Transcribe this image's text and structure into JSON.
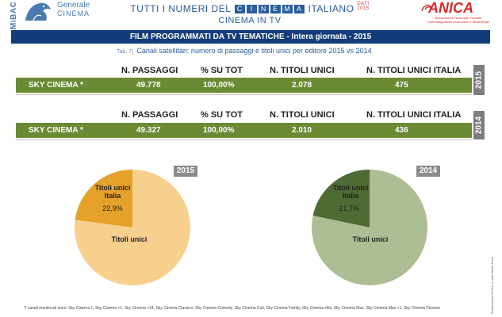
{
  "header": {
    "ministry_vertical": "MiBAC",
    "ministry_line1": "Generale",
    "ministry_line2": "CINEMA",
    "title_before": "TUTTI I NUMERI DEL",
    "title_cinema_letters": [
      "C",
      "I",
      "N",
      "E",
      "M",
      "A"
    ],
    "title_after": "ITALIANO",
    "title_year_tag_1": "DATI",
    "title_year_tag_2": "2015",
    "subtitle": "CINEMA IN TV",
    "right_logo": "ANICA",
    "right_logo_sub": "Associazione Nazionale Industrie Cinematografiche Audiovisive e Multimediali"
  },
  "banner": "FILM PROGRAMMATI DA TV TEMATICHE - Intera giornata - 2015",
  "caption": {
    "tab": "Tab. 7)",
    "text": "Canali satellitari: numero di passaggi e titoli unici  per editore 2015 vs 2014"
  },
  "tables": [
    {
      "year": "2015",
      "headers": [
        "N. PASSAGGI",
        "% SU TOT",
        "N. TITOLI UNICI",
        "N. TITOLI UNICI ITALIA"
      ],
      "row": {
        "label": "SKY CINEMA *",
        "values": [
          "49.778",
          "100,00%",
          "2.078",
          "475"
        ]
      }
    },
    {
      "year": "2014",
      "headers": [
        "N. PASSAGGI",
        "% SU TOT",
        "N. TITOLI UNICI",
        "N. TITOLI UNICI ITALIA"
      ],
      "row": {
        "label": "SKY CINEMA *",
        "values": [
          "49.327",
          "100,00%",
          "2.010",
          "436"
        ]
      }
    }
  ],
  "pies": [
    {
      "year": "2015",
      "slices": [
        {
          "label": "Titoli unici",
          "value": 77.1,
          "percent_label": "",
          "color": "#f6d08c"
        },
        {
          "label_line1": "Titoli unici",
          "label_line2": "Italia",
          "value": 22.9,
          "percent_label": "22,9%",
          "color": "#e4a22a"
        }
      ]
    },
    {
      "year": "2014",
      "slices": [
        {
          "label": "Titoli unici",
          "value": 78.3,
          "percent_label": "",
          "color": "#aebe94"
        },
        {
          "label_line1": "Titoli unici",
          "label_line2": "Italia",
          "value": 21.7,
          "percent_label": "21,7%",
          "color": "#4d6b33"
        }
      ]
    }
  ],
  "footnote": "*I canali monitorati sono: Sky Cinema 1, Sky Cinema +1, Sky Cinema +24, Sky Cinema Classics, Sky Cinema Comedy, Sky Cinema Cult, Sky Cinema Family, Sky Cinema Hits, Sky Cinema Max, Sky Cinema Max +1, Sky Cinema Passion",
  "side_credit": "Elaborazione ANICA su dati Studio Frasi"
}
